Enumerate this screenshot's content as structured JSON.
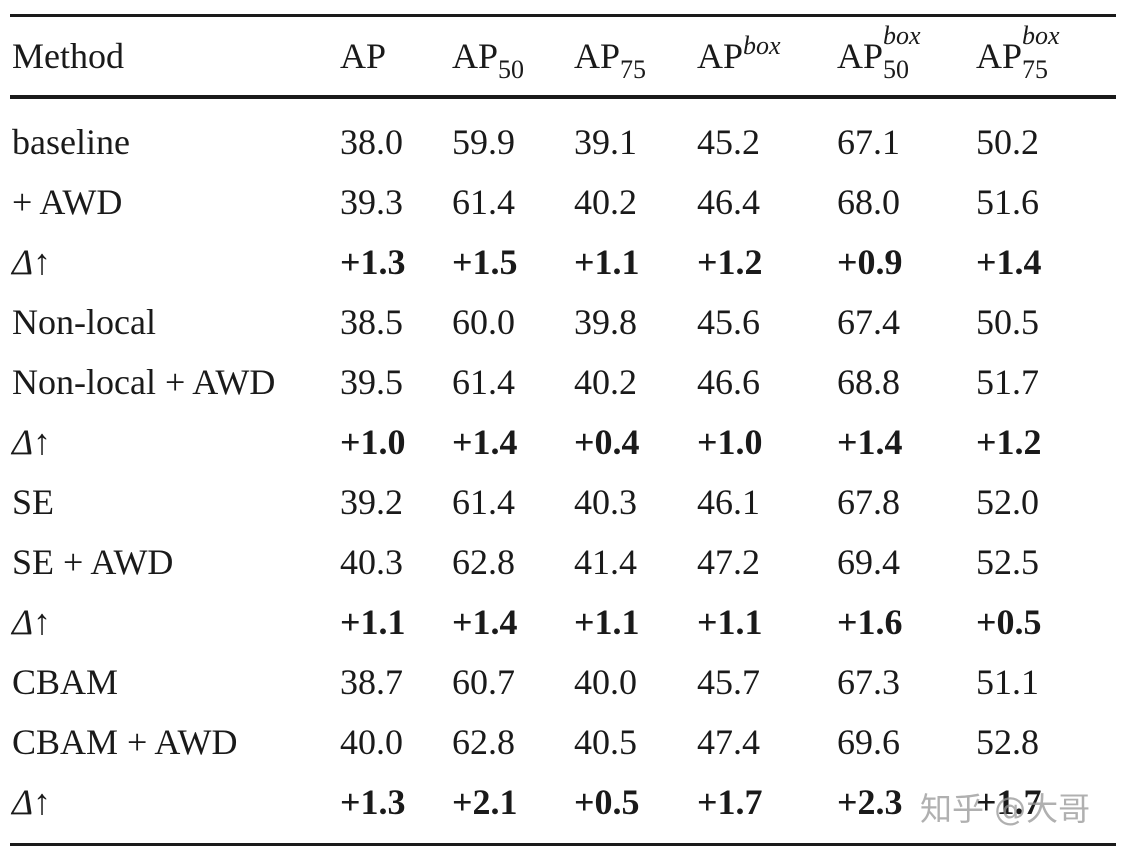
{
  "table": {
    "headers": {
      "method": "Method",
      "ap": "AP",
      "ap50_base": "AP",
      "ap50_sub": "50",
      "ap75_base": "AP",
      "ap75_sub": "75",
      "apbox_base": "AP",
      "apbox_sup": "box",
      "apbox50_base": "AP",
      "apbox50_sup": "box",
      "apbox50_sub": "50",
      "apbox75_base": "AP",
      "apbox75_sup": "box",
      "apbox75_sub": "75"
    },
    "rows": [
      {
        "method": "baseline",
        "values": [
          "38.0",
          "59.9",
          "39.1",
          "45.2",
          "67.1",
          "50.2"
        ]
      },
      {
        "method": "+ AWD",
        "values": [
          "39.3",
          "61.4",
          "40.2",
          "46.4",
          "68.0",
          "51.6"
        ]
      },
      {
        "method_symbol": "Δ",
        "method_arrow": "↑",
        "values": [
          "+1.3",
          "+1.5",
          "+1.1",
          "+1.2",
          "+0.9",
          "+1.4"
        ]
      },
      {
        "method": "Non-local",
        "values": [
          "38.5",
          "60.0",
          "39.8",
          "45.6",
          "67.4",
          "50.5"
        ]
      },
      {
        "method": "Non-local + AWD",
        "values": [
          "39.5",
          "61.4",
          "40.2",
          "46.6",
          "68.8",
          "51.7"
        ]
      },
      {
        "method_symbol": "Δ",
        "method_arrow": "↑",
        "values": [
          "+1.0",
          "+1.4",
          "+0.4",
          "+1.0",
          "+1.4",
          "+1.2"
        ]
      },
      {
        "method": "SE",
        "values": [
          "39.2",
          "61.4",
          "40.3",
          "46.1",
          "67.8",
          "52.0"
        ]
      },
      {
        "method": "SE + AWD",
        "values": [
          "40.3",
          "62.8",
          "41.4",
          "47.2",
          "69.4",
          "52.5"
        ]
      },
      {
        "method_symbol": "Δ",
        "method_arrow": "↑",
        "values": [
          "+1.1",
          "+1.4",
          "+1.1",
          "+1.1",
          "+1.6",
          "+0.5"
        ]
      },
      {
        "method": "CBAM",
        "values": [
          "38.7",
          "60.7",
          "40.0",
          "45.7",
          "67.3",
          "51.1"
        ]
      },
      {
        "method": "CBAM + AWD",
        "values": [
          "40.0",
          "62.8",
          "40.5",
          "47.4",
          "69.6",
          "52.8"
        ]
      },
      {
        "method_symbol": "Δ",
        "method_arrow": "↑",
        "values": [
          "+1.3",
          "+2.1",
          "+0.5",
          "+1.7",
          "+2.3",
          "+1.7"
        ]
      }
    ]
  },
  "watermark": "知乎 @大哥"
}
